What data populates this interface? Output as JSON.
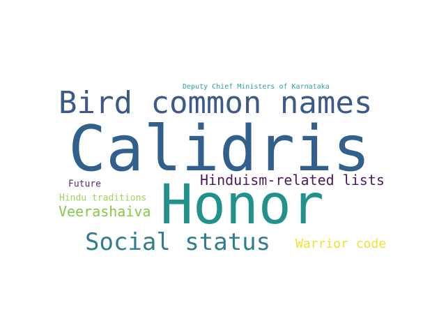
{
  "wordcloud": {
    "words": [
      {
        "text": "Calidris",
        "color": "#31608d"
      },
      {
        "text": "Honor",
        "color": "#21918c"
      },
      {
        "text": "Bird common names",
        "color": "#3b5a8a"
      },
      {
        "text": "Social status",
        "color": "#2f7d8e"
      },
      {
        "text": "Hinduism-related lists",
        "color": "#4a1a5e"
      },
      {
        "text": "Veerashaiva",
        "color": "#86c84a"
      },
      {
        "text": "Warrior code",
        "color": "#f1e234"
      },
      {
        "text": "Hindu traditions",
        "color": "#9fd35c"
      },
      {
        "text": "Future",
        "color": "#5a2a6e"
      },
      {
        "text": "Deputy Chief Ministers of Karnataka",
        "color": "#2aa5a0"
      }
    ]
  }
}
